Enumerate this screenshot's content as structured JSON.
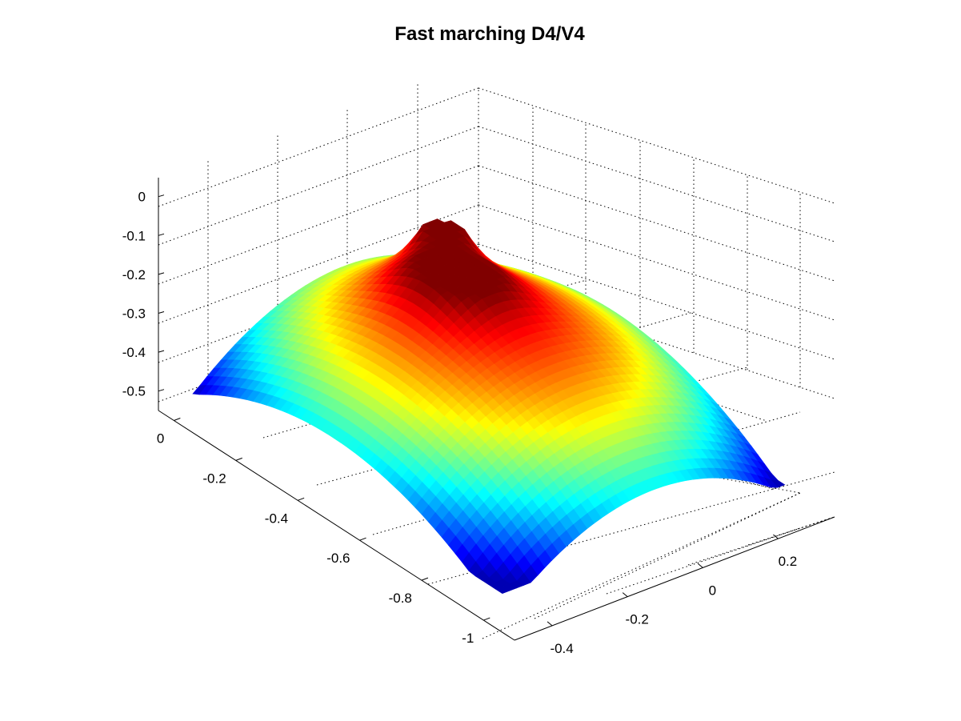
{
  "chart_data": {
    "type": "surface3d",
    "title": "Fast marching D4/V4",
    "xlabel": "",
    "ylabel": "",
    "zlabel": "",
    "colormap": "jet",
    "grid": true,
    "axis_x": {
      "range": [
        -1.1,
        0.05
      ],
      "ticks": [
        0,
        -0.2,
        -0.4,
        -0.6,
        -0.8,
        -1
      ],
      "tick_labels": [
        "0",
        "-0.2",
        "-0.4",
        "-0.6",
        "-0.8",
        "-1"
      ]
    },
    "axis_y": {
      "range": [
        -0.5,
        0.35
      ],
      "ticks": [
        -0.4,
        -0.2,
        0,
        0.2
      ],
      "tick_labels": [
        "-0.4",
        "-0.2",
        "0",
        "0.2"
      ]
    },
    "axis_z": {
      "range": [
        -0.55,
        0.05
      ],
      "ticks": [
        0,
        -0.1,
        -0.2,
        -0.3,
        -0.4,
        -0.5
      ],
      "tick_labels": [
        "0",
        "-0.1",
        "-0.2",
        "-0.3",
        "-0.4",
        "-0.5"
      ]
    },
    "surface_values": {
      "min": -0.5,
      "max": -0.15,
      "peak_points": [
        {
          "x": -0.35,
          "y": -0.05,
          "z": -0.17
        },
        {
          "x": -0.2,
          "y": 0.05,
          "z": -0.15
        }
      ],
      "low_corners": [
        {
          "x": 0.0,
          "y": -0.45,
          "z": -0.44
        },
        {
          "x": -1.0,
          "y": -0.45,
          "z": -0.52
        },
        {
          "x": -0.95,
          "y": 0.3,
          "z": -0.48
        },
        {
          "x": 0.0,
          "y": 0.3,
          "z": -0.35
        }
      ]
    }
  }
}
